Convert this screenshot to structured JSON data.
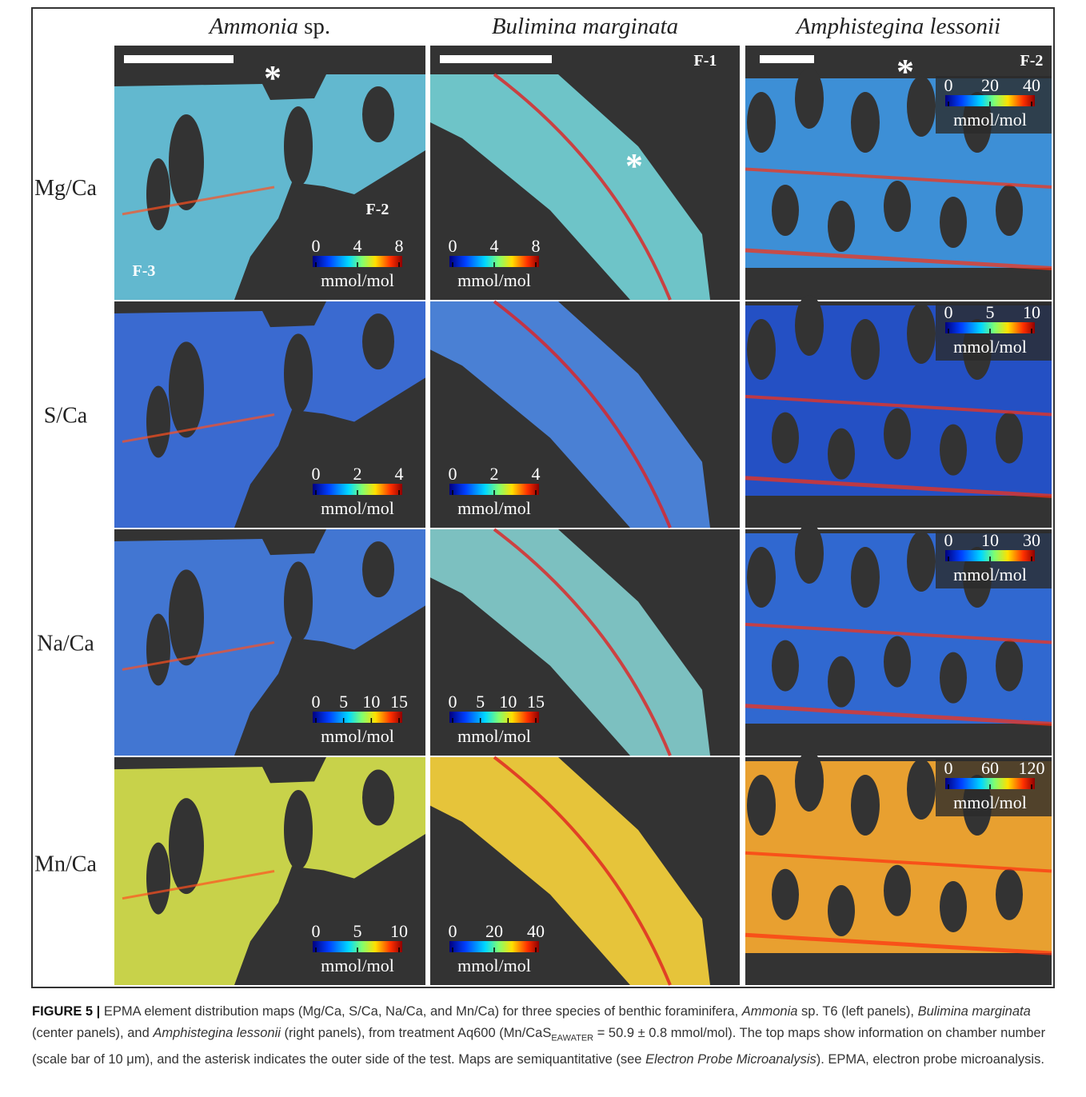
{
  "columns": [
    {
      "italic": "Ammonia",
      "plain": "sp."
    },
    {
      "italic": "Bulimina marginata"
    },
    {
      "italic": "Amphistegina lessonii"
    }
  ],
  "rows": [
    "Mg/Ca",
    "S/Ca",
    "Na/Ca",
    "Mn/Ca"
  ],
  "unit": "mmol/mol",
  "panels": [
    [
      {
        "ticks": [
          0,
          4,
          8
        ],
        "labels": [
          "*",
          "F-2",
          "F-3"
        ]
      },
      {
        "ticks": [
          0,
          4,
          8
        ],
        "labels": [
          "F-1",
          "*"
        ]
      },
      {
        "ticks": [
          0,
          20,
          40
        ],
        "labels": [
          "*",
          "F-2"
        ]
      }
    ],
    [
      {
        "ticks": [
          0,
          2,
          4
        ]
      },
      {
        "ticks": [
          0,
          2,
          4
        ]
      },
      {
        "ticks": [
          0,
          5,
          10
        ]
      }
    ],
    [
      {
        "ticks": [
          0,
          5,
          10,
          15
        ]
      },
      {
        "ticks": [
          0,
          5,
          10,
          15
        ]
      },
      {
        "ticks": [
          0,
          10,
          30
        ]
      }
    ],
    [
      {
        "ticks": [
          0,
          5,
          10
        ]
      },
      {
        "ticks": [
          0,
          20,
          40
        ]
      },
      {
        "ticks": [
          0,
          60,
          120
        ]
      }
    ]
  ],
  "caption": [
    {
      "style": "bold",
      "text": "FIGURE 5 | "
    },
    {
      "style": "normal",
      "text": "EPMA element distribution maps (Mg/Ca, S/Ca, Na/Ca, and Mn/Ca) for three species of benthic foraminifera, "
    },
    {
      "style": "italic",
      "text": "Ammonia"
    },
    {
      "style": "normal",
      "text": " sp. T6 (left panels), "
    },
    {
      "style": "italic",
      "text": "Bulimina marginata"
    },
    {
      "style": "normal",
      "text": " (center panels), and "
    },
    {
      "style": "italic",
      "text": "Amphistegina lessonii"
    },
    {
      "style": "normal",
      "text": " (right panels), from treatment Aq600 (Mn/CaS"
    },
    {
      "style": "sub",
      "text": "EAWATER"
    },
    {
      "style": "normal",
      "text": " = 50.9 ± 0.8 mmol/mol). The top maps show information on chamber number (scale bar of 10 μm), and the asterisk indicates the outer side of the test. Maps are semiquantitative (see "
    },
    {
      "style": "italic",
      "text": "Electron Probe Microanalysis"
    },
    {
      "style": "normal",
      "text": "). EPMA, electron probe microanalysis."
    }
  ]
}
